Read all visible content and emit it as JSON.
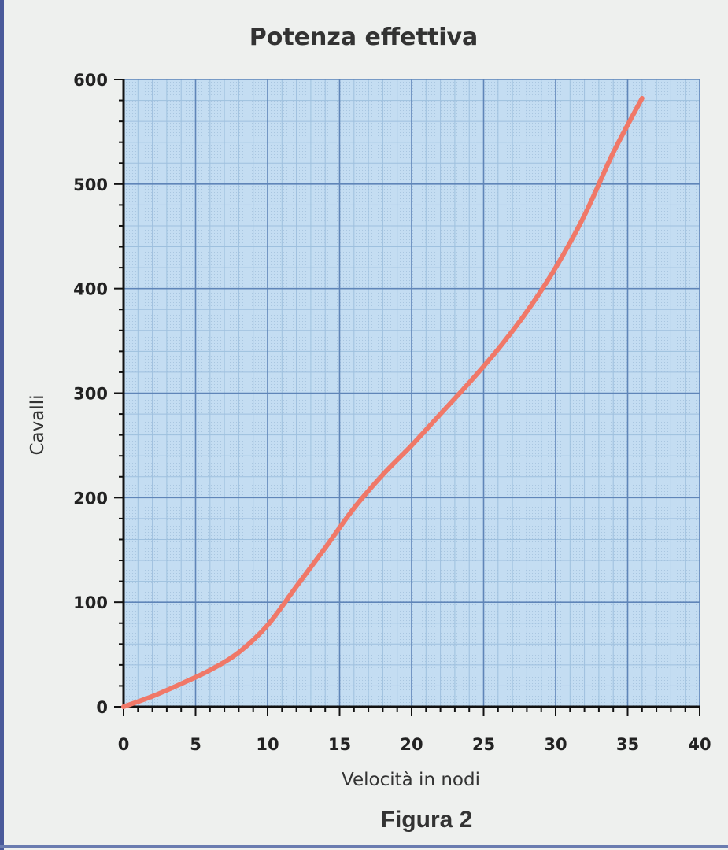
{
  "chart_data": {
    "type": "line",
    "title": "Potenza effettiva",
    "xlabel": "Velocità in nodi",
    "ylabel": "Cavalli",
    "xlim": [
      0,
      40
    ],
    "ylim": [
      0,
      600
    ],
    "x_ticks": [
      0,
      5,
      10,
      15,
      20,
      25,
      30,
      35,
      40
    ],
    "y_ticks": [
      0,
      100,
      200,
      300,
      400,
      500,
      600
    ],
    "grid": true,
    "series": [
      {
        "color": "#f07868",
        "x": [
          0,
          2,
          4,
          6,
          8,
          10,
          12,
          14,
          16,
          18,
          20,
          22,
          24,
          26,
          28,
          30,
          32,
          34,
          36
        ],
        "y": [
          0,
          10,
          22,
          35,
          52,
          78,
          115,
          152,
          190,
          222,
          250,
          280,
          310,
          342,
          378,
          420,
          470,
          530,
          582
        ]
      }
    ]
  },
  "caption": "Figura  2"
}
